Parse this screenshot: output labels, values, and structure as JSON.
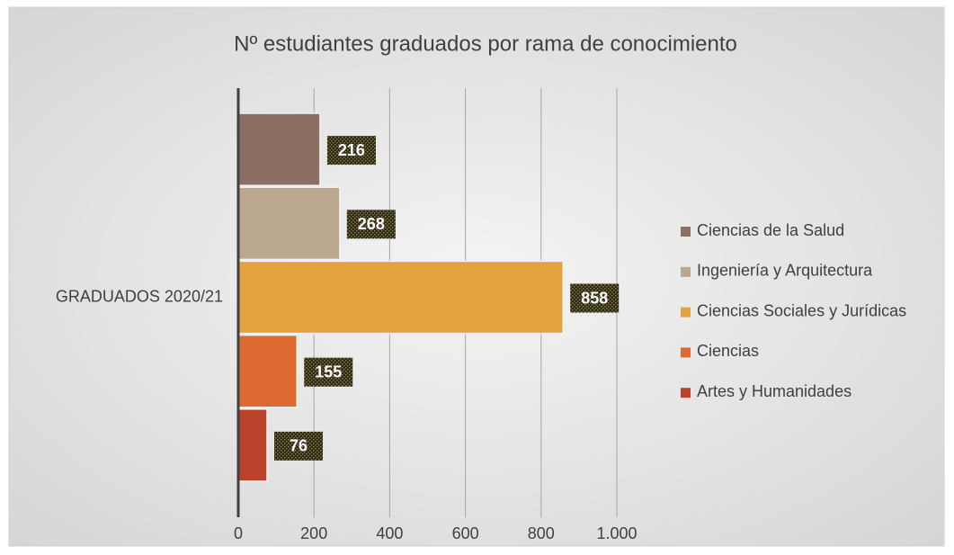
{
  "chart_data": {
    "type": "bar",
    "orientation": "horizontal",
    "title": "Nº estudiantes graduados por rama de conocimiento",
    "categories": [
      "GRADUADOS 2020/21"
    ],
    "series": [
      {
        "name": "Ciencias de la Salud",
        "color": "#8c6f63",
        "values": [
          216
        ]
      },
      {
        "name": "Ingeniería y Arquitectura",
        "color": "#bba78d",
        "values": [
          268
        ]
      },
      {
        "name": "Ciencias Sociales y Jurídicas",
        "color": "#e3a23d",
        "values": [
          858
        ]
      },
      {
        "name": "Ciencias",
        "color": "#dc6a31",
        "values": [
          155
        ]
      },
      {
        "name": "Artes y Humanidades",
        "color": "#b8442c",
        "values": [
          76
        ]
      }
    ],
    "xlim": [
      0,
      1000
    ],
    "xticks": [
      0,
      200,
      400,
      600,
      800,
      {
        "value": 1000,
        "label": "1.000"
      }
    ],
    "grid": true,
    "legend": "right"
  }
}
